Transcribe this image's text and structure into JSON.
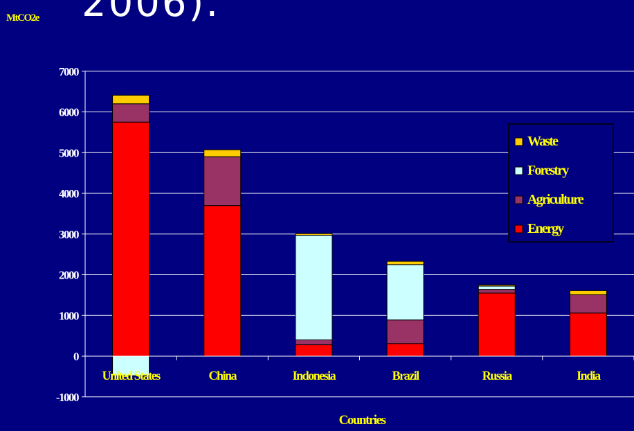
{
  "page": {
    "title_fragment": "2006).",
    "y_unit_label": "MtCO2e",
    "x_axis_title": "Countries"
  },
  "colors": {
    "background": "#000080",
    "axis_text": "#ffff00",
    "y_tick_text": "#ffffff",
    "Waste": "#ffcc00",
    "Forestry": "#ccffff",
    "Agriculture": "#993366",
    "Energy": "#ff0000"
  },
  "chart_data": {
    "type": "bar",
    "stacked": true,
    "categories": [
      "United States",
      "China",
      "Indonesia",
      "Brazil",
      "Russia",
      "India"
    ],
    "series": [
      {
        "name": "Energy",
        "values": [
          5750,
          3700,
          280,
          310,
          1550,
          1060
        ]
      },
      {
        "name": "Agriculture",
        "values": [
          450,
          1200,
          120,
          580,
          90,
          450
        ]
      },
      {
        "name": "Forestry",
        "values": [
          -480,
          0,
          2570,
          1360,
          80,
          0
        ]
      },
      {
        "name": "Waste",
        "values": [
          210,
          170,
          40,
          80,
          30,
          100
        ]
      }
    ],
    "title": "",
    "xlabel": "Countries",
    "ylabel": "MtCO2e",
    "ylim": [
      -1000,
      7000
    ],
    "yticks": [
      -1000,
      0,
      1000,
      2000,
      3000,
      4000,
      5000,
      6000,
      7000
    ],
    "grid": true,
    "legend": {
      "position": "right",
      "entries": [
        "Waste",
        "Forestry",
        "Agriculture",
        "Energy"
      ]
    }
  }
}
